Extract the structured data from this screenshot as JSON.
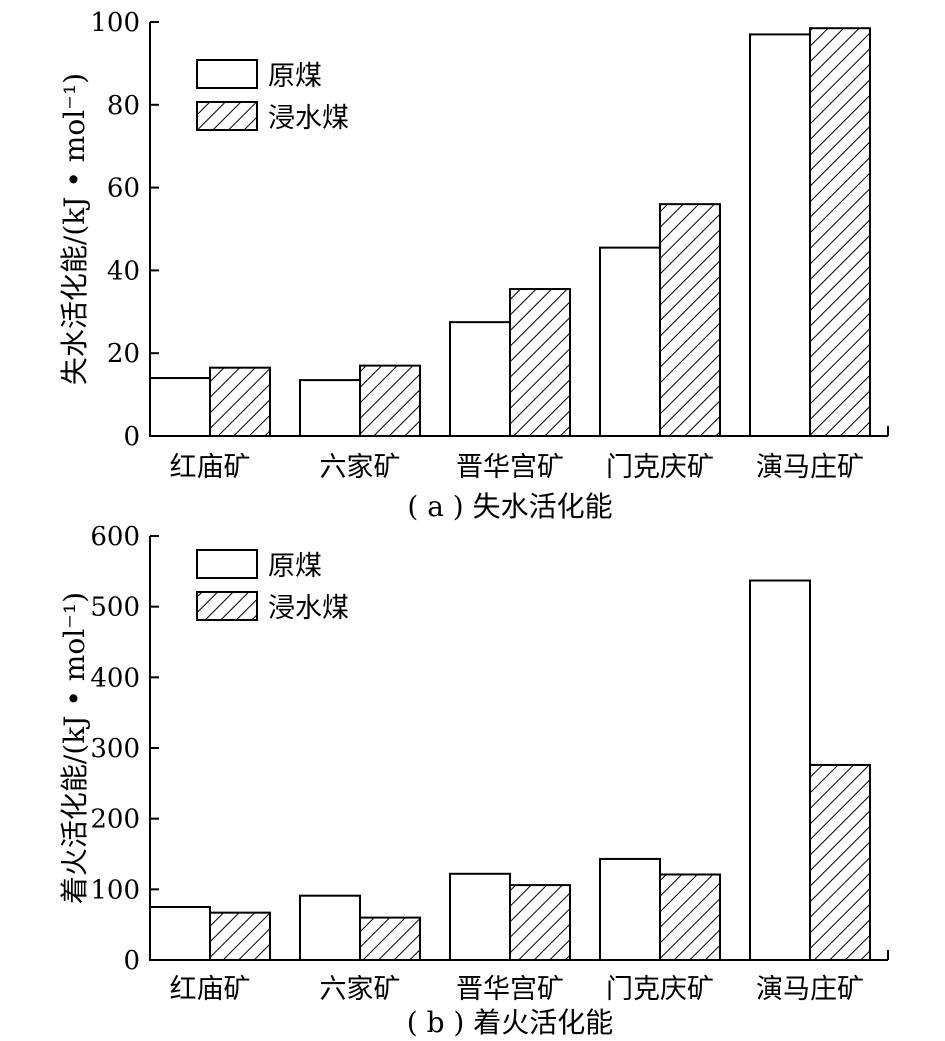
{
  "colors": {
    "ink": "#000000",
    "background": "#ffffff"
  },
  "chart_data": [
    {
      "type": "bar",
      "caption": "( a ) 失水活化能",
      "ylabel": "失水活化能/(kJ • mol⁻¹)",
      "ylim": [
        0,
        100
      ],
      "yticks": [
        0,
        20,
        40,
        60,
        80,
        100
      ],
      "categories": [
        "红庙矿",
        "六家矿",
        "晋华宫矿",
        "门克庆矿",
        "演马庄矿"
      ],
      "series": [
        {
          "name": "原煤",
          "pattern": "plain",
          "values": [
            14,
            13.5,
            27.5,
            45.5,
            97
          ]
        },
        {
          "name": "浸水煤",
          "pattern": "hatched",
          "values": [
            16.5,
            17,
            35.5,
            56,
            98.5
          ]
        }
      ],
      "legend": {
        "position": "top-left",
        "entries": [
          "原煤",
          "浸水煤"
        ]
      },
      "grid": false
    },
    {
      "type": "bar",
      "caption": "( b ) 着火活化能",
      "ylabel": "着火活化能/(kJ • mol⁻¹)",
      "ylim": [
        0,
        600
      ],
      "yticks": [
        0,
        100,
        200,
        300,
        400,
        500,
        600
      ],
      "categories": [
        "红庙矿",
        "六家矿",
        "晋华宫矿",
        "门克庆矿",
        "演马庄矿"
      ],
      "series": [
        {
          "name": "原煤",
          "pattern": "plain",
          "values": [
            75,
            91,
            122,
            143,
            537
          ]
        },
        {
          "name": "浸水煤",
          "pattern": "hatched",
          "values": [
            67,
            60,
            106,
            121,
            276
          ]
        }
      ],
      "legend": {
        "position": "top-left",
        "entries": [
          "原煤",
          "浸水煤"
        ]
      },
      "grid": false
    }
  ]
}
